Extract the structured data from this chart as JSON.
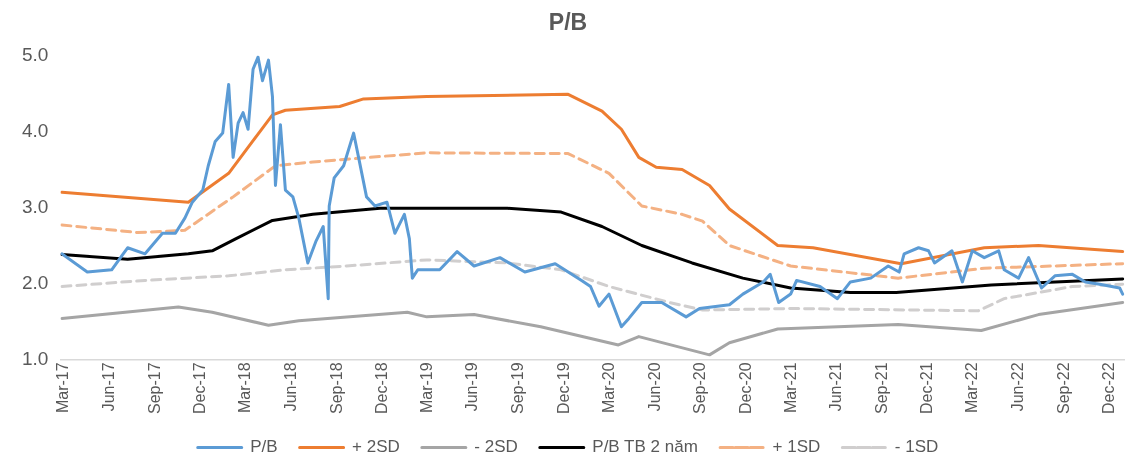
{
  "chart_data": {
    "type": "line",
    "title": "P/B",
    "xlim": [
      "2017-02-22",
      "2022-12-31"
    ],
    "ylim": [
      1,
      5
    ],
    "yticks": [
      {
        "value": 1,
        "label": "1.0"
      },
      {
        "value": 2,
        "label": "2.0"
      },
      {
        "value": 3,
        "label": "3.0"
      },
      {
        "value": 4,
        "label": "4.0"
      },
      {
        "value": 5,
        "label": "5.0"
      }
    ],
    "xticks": [
      {
        "value": "2017-03",
        "label": "Mar-17"
      },
      {
        "value": "2017-06",
        "label": "Jun-17"
      },
      {
        "value": "2017-09",
        "label": "Sep-17"
      },
      {
        "value": "2017-12",
        "label": "Dec-17"
      },
      {
        "value": "2018-03",
        "label": "Mar-18"
      },
      {
        "value": "2018-06",
        "label": "Jun-18"
      },
      {
        "value": "2018-09",
        "label": "Sep-18"
      },
      {
        "value": "2018-12",
        "label": "Dec-18"
      },
      {
        "value": "2019-03",
        "label": "Mar-19"
      },
      {
        "value": "2019-06",
        "label": "Jun-19"
      },
      {
        "value": "2019-09",
        "label": "Sep-19"
      },
      {
        "value": "2019-12",
        "label": "Dec-19"
      },
      {
        "value": "2020-03",
        "label": "Mar-20"
      },
      {
        "value": "2020-06",
        "label": "Jun-20"
      },
      {
        "value": "2020-09",
        "label": "Sep-20"
      },
      {
        "value": "2020-12",
        "label": "Dec-20"
      },
      {
        "value": "2021-03",
        "label": "Mar-21"
      },
      {
        "value": "2021-06",
        "label": "Jun-21"
      },
      {
        "value": "2021-09",
        "label": "Sep-21"
      },
      {
        "value": "2021-12",
        "label": "Dec-21"
      },
      {
        "value": "2022-03",
        "label": "Mar-22"
      },
      {
        "value": "2022-06",
        "label": "Jun-22"
      },
      {
        "value": "2022-09",
        "label": "Sep-22"
      },
      {
        "value": "2022-12",
        "label": "Dec-22"
      }
    ],
    "grid": false,
    "legend": "bottom",
    "marker": "none",
    "series": [
      {
        "name": "P/B",
        "color": "#5b9bd5",
        "line_style": "solid",
        "x": [
          "2017-02-25",
          "2017-04-17",
          "2017-06-05",
          "2017-07-07",
          "2017-08-11",
          "2017-09-15",
          "2017-10-11",
          "2017-10-30",
          "2017-11-14",
          "2017-12-05",
          "2017-12-16",
          "2017-12-30",
          "2018-01-14",
          "2018-01-26",
          "2018-02-04",
          "2018-02-14",
          "2018-02-24",
          "2018-03-06",
          "2018-03-16",
          "2018-03-26",
          "2018-04-04",
          "2018-04-16",
          "2018-04-24",
          "2018-04-30",
          "2018-05-10",
          "2018-05-20",
          "2018-06-04",
          "2018-06-16",
          "2018-07-04",
          "2018-07-20",
          "2018-08-04",
          "2018-08-14",
          "2018-08-16",
          "2018-08-26",
          "2018-09-14",
          "2018-10-04",
          "2018-10-14",
          "2018-10-30",
          "2018-11-16",
          "2018-12-10",
          "2018-12-26",
          "2019-01-14",
          "2019-01-24",
          "2019-01-30",
          "2019-02-10",
          "2019-03-26",
          "2019-04-30",
          "2019-06-03",
          "2019-07-25",
          "2019-09-13",
          "2019-11-13",
          "2020-01-05",
          "2020-01-23",
          "2020-02-09",
          "2020-02-29",
          "2020-03-25",
          "2020-04-09",
          "2020-05-05",
          "2020-06-14",
          "2020-08-02",
          "2020-08-29",
          "2020-10-28",
          "2020-11-24",
          "2021-01-04",
          "2021-01-18",
          "2021-02-04",
          "2021-02-28",
          "2021-03-12",
          "2021-04-28",
          "2021-06-02",
          "2021-06-28",
          "2021-08-08",
          "2021-09-12",
          "2021-10-04",
          "2021-10-14",
          "2021-11-12",
          "2021-12-02",
          "2021-12-14",
          "2022-01-18",
          "2022-02-08",
          "2022-02-28",
          "2022-03-24",
          "2022-04-22",
          "2022-05-03",
          "2022-06-01",
          "2022-06-21",
          "2022-07-17",
          "2022-08-13",
          "2022-09-17",
          "2022-10-13",
          "2022-11-11",
          "2022-12-21",
          "2022-12-27"
        ],
        "values": [
          2.39,
          2.15,
          2.18,
          2.47,
          2.39,
          2.66,
          2.66,
          2.86,
          3.07,
          3.23,
          3.55,
          3.87,
          3.98,
          4.62,
          3.66,
          4.11,
          4.25,
          4.03,
          4.82,
          4.98,
          4.67,
          4.94,
          4.46,
          3.29,
          4.09,
          3.23,
          3.14,
          2.86,
          2.27,
          2.55,
          2.75,
          1.8,
          3.02,
          3.39,
          3.55,
          3.98,
          3.66,
          3.14,
          3.02,
          3.07,
          2.66,
          2.91,
          2.59,
          2.07,
          2.18,
          2.18,
          2.42,
          2.23,
          2.34,
          2.15,
          2.26,
          2.04,
          1.96,
          1.7,
          1.86,
          1.43,
          1.54,
          1.75,
          1.75,
          1.56,
          1.67,
          1.72,
          1.86,
          2.02,
          2.12,
          1.75,
          1.86,
          2.04,
          1.96,
          1.8,
          2.02,
          2.07,
          2.23,
          2.15,
          2.39,
          2.47,
          2.43,
          2.27,
          2.43,
          2.02,
          2.43,
          2.34,
          2.43,
          2.18,
          2.07,
          2.34,
          1.94,
          2.1,
          2.12,
          2.02,
          1.99,
          1.94,
          1.86
        ]
      },
      {
        "name": "+ 2SD",
        "color": "#ed7d31",
        "line_style": "solid",
        "x": [
          "2017-02-25",
          "2017-11-06",
          "2018-01-26",
          "2018-04-24",
          "2018-05-20",
          "2018-09-06",
          "2018-10-24",
          "2019-02-28",
          "2019-12-09",
          "2020-02-15",
          "2020-03-25",
          "2020-04-29",
          "2020-06-03",
          "2020-07-25",
          "2020-09-18",
          "2020-10-28",
          "2021-02-02",
          "2021-04-14",
          "2021-10-08",
          "2022-03-24",
          "2022-07-11",
          "2022-12-27"
        ],
        "values": [
          3.2,
          3.07,
          3.45,
          4.22,
          4.28,
          4.33,
          4.43,
          4.46,
          4.49,
          4.27,
          4.03,
          3.66,
          3.53,
          3.5,
          3.29,
          2.98,
          2.5,
          2.47,
          2.26,
          2.47,
          2.5,
          2.42
        ]
      },
      {
        "name": "- 2SD",
        "color": "#a5a5a5",
        "line_style": "solid",
        "x": [
          "2017-02-25",
          "2017-10-17",
          "2017-12-24",
          "2018-04-16",
          "2018-06-16",
          "2019-01-20",
          "2019-02-28",
          "2019-06-03",
          "2019-10-15",
          "2020-03-19",
          "2020-04-29",
          "2020-09-18",
          "2020-10-28",
          "2021-02-02",
          "2021-10-02",
          "2022-03-18",
          "2022-07-11",
          "2022-12-27"
        ],
        "values": [
          1.54,
          1.69,
          1.62,
          1.45,
          1.51,
          1.62,
          1.56,
          1.59,
          1.43,
          1.19,
          1.3,
          1.06,
          1.22,
          1.4,
          1.46,
          1.38,
          1.59,
          1.75
        ]
      },
      {
        "name": "P/B TB 2 năm",
        "color": "#000000",
        "line_style": "solid",
        "x": [
          "2017-02-25",
          "2017-07-07",
          "2017-11-06",
          "2017-12-24",
          "2018-02-10",
          "2018-04-24",
          "2018-07-14",
          "2018-11-26",
          "2019-08-09",
          "2019-11-25",
          "2020-02-15",
          "2020-05-05",
          "2020-08-14",
          "2020-11-24",
          "2021-02-28",
          "2021-06-28",
          "2021-09-28",
          "2022-04-07",
          "2022-12-27"
        ],
        "values": [
          2.38,
          2.32,
          2.39,
          2.43,
          2.59,
          2.83,
          2.91,
          2.99,
          2.99,
          2.94,
          2.75,
          2.5,
          2.27,
          2.07,
          1.94,
          1.88,
          1.88,
          1.98,
          2.06
        ]
      },
      {
        "name": "+ 1SD",
        "color": "#f4b183",
        "line_style": "dashed",
        "x": [
          "2017-02-25",
          "2017-07-27",
          "2017-10-30",
          "2018-02-04",
          "2018-04-30",
          "2018-07-14",
          "2019-02-28",
          "2019-12-09",
          "2020-02-29",
          "2020-05-05",
          "2020-07-25",
          "2020-09-04",
          "2020-10-28",
          "2021-02-28",
          "2021-10-02",
          "2022-03-24",
          "2022-12-27"
        ],
        "values": [
          2.77,
          2.67,
          2.7,
          3.14,
          3.55,
          3.6,
          3.72,
          3.71,
          3.45,
          3.02,
          2.91,
          2.82,
          2.5,
          2.23,
          2.07,
          2.2,
          2.26
        ]
      },
      {
        "name": "- 1SD",
        "color": "#d0cece",
        "line_style": "dashed",
        "x": [
          "2017-02-25",
          "2017-08-11",
          "2018-01-26",
          "2018-05-20",
          "2018-09-20",
          "2019-02-28",
          "2019-08-09",
          "2019-11-25",
          "2020-02-29",
          "2020-06-29",
          "2020-09-04",
          "2021-02-28",
          "2022-03-12",
          "2022-05-03",
          "2022-09-17",
          "2022-12-27"
        ],
        "values": [
          1.96,
          2.04,
          2.1,
          2.18,
          2.23,
          2.31,
          2.27,
          2.18,
          1.96,
          1.75,
          1.65,
          1.67,
          1.64,
          1.8,
          1.96,
          1.99
        ]
      }
    ]
  }
}
